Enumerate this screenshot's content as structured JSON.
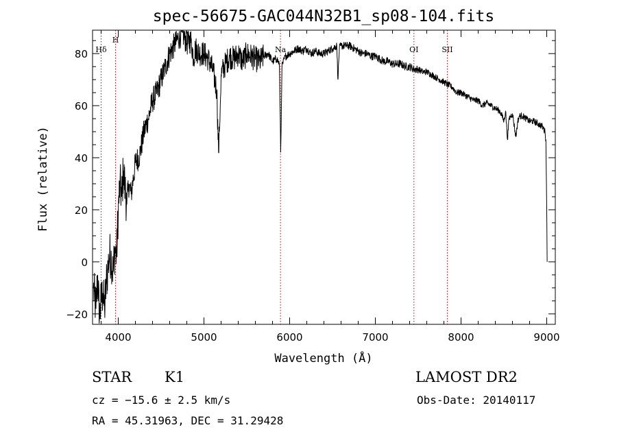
{
  "chart_data": {
    "type": "line",
    "title": "spec-56675-GAC044N32B1_sp08-104.fits",
    "xlabel": "Wavelength (Å)",
    "ylabel": "Flux (relative)",
    "xlim": [
      3700,
      9100
    ],
    "ylim": [
      -24,
      89
    ],
    "xticks": [
      "4000",
      "5000",
      "6000",
      "7000",
      "8000",
      "9000"
    ],
    "yticks": [
      "−20",
      "0",
      "20",
      "40",
      "60",
      "80"
    ],
    "grid": false,
    "line_color": "#000000",
    "marker_color": "#c00000",
    "lines": [
      {
        "label": "Hδ",
        "x": 3800
      },
      {
        "label": "H",
        "x": 3968
      },
      {
        "label": "Na",
        "x": 5893
      },
      {
        "label": "OI",
        "x": 7450
      },
      {
        "label": "SII",
        "x": 7840
      }
    ],
    "series": [
      {
        "x": [
          3710,
          3740,
          3760,
          3780,
          3800,
          3820,
          3840,
          3860,
          3880,
          3900,
          3920,
          3940,
          3960,
          3980,
          4000,
          4020,
          4040,
          4060,
          4080,
          4100,
          4120,
          4150,
          4200,
          4250,
          4300,
          4350,
          4400,
          4450,
          4500,
          4550,
          4600,
          4650,
          4700,
          4750,
          4800,
          4850,
          4880,
          4900,
          4950,
          5000,
          5050,
          5100,
          5150,
          5170,
          5180,
          5190,
          5200,
          5250,
          5300,
          5350,
          5400,
          5450,
          5500,
          5550,
          5600,
          5650,
          5700,
          5750,
          5800,
          5850,
          5880,
          5890,
          5895,
          5900,
          5910,
          5950,
          6000,
          6050,
          6100,
          6150,
          6200,
          6250,
          6300,
          6350,
          6400,
          6450,
          6500,
          6550,
          6563,
          6580,
          6600,
          6650,
          6700,
          6750,
          6800,
          6850,
          6900,
          6950,
          7000,
          7050,
          7100,
          7150,
          7200,
          7250,
          7300,
          7350,
          7400,
          7450,
          7500,
          7550,
          7600,
          7650,
          7700,
          7750,
          7800,
          7850,
          7900,
          7950,
          8000,
          8050,
          8100,
          8150,
          8200,
          8250,
          8300,
          8350,
          8400,
          8450,
          8480,
          8500,
          8520,
          8542,
          8560,
          8600,
          8640,
          8662,
          8680,
          8720,
          8760,
          8800,
          8850,
          8900,
          8950,
          8980,
          8990,
          9000,
          9005
        ],
        "y": [
          -10,
          -18,
          -5,
          -22,
          -15,
          -12,
          -18,
          -8,
          -2,
          3,
          1,
          -4,
          5,
          2,
          20,
          30,
          25,
          35,
          28,
          22,
          30,
          26,
          38,
          41,
          50,
          55,
          62,
          65,
          70,
          75,
          80,
          83,
          86,
          88,
          84,
          85,
          78,
          82,
          80,
          80,
          78,
          74,
          66,
          42,
          50,
          60,
          72,
          76,
          79,
          78,
          80,
          77,
          80,
          79,
          78,
          77,
          79,
          80,
          77,
          78,
          76,
          55,
          42,
          50,
          75,
          79,
          80,
          81,
          82,
          81,
          82,
          80,
          81,
          80,
          80,
          81,
          82,
          83,
          70,
          82,
          83,
          83,
          83,
          82,
          81,
          80,
          80,
          79,
          79,
          78,
          77,
          77,
          76,
          76,
          76,
          75,
          75,
          74,
          74,
          73,
          73,
          72,
          71,
          70,
          69,
          68,
          67,
          65,
          65,
          64,
          63,
          62,
          62,
          60,
          61,
          60,
          59,
          58,
          56,
          54,
          58,
          47,
          55,
          57,
          48,
          54,
          56,
          56,
          55,
          54,
          54,
          53,
          52,
          50,
          47,
          20,
          0
        ]
      }
    ]
  },
  "info": {
    "object_class": "STAR",
    "subclass": "K1",
    "cz": "cz = −15.6 ± 2.5 km/s",
    "coords": "RA =  45.31963, DEC =  31.29428",
    "survey": "LAMOST DR2",
    "obs_date": "Obs-Date: 20140117"
  }
}
